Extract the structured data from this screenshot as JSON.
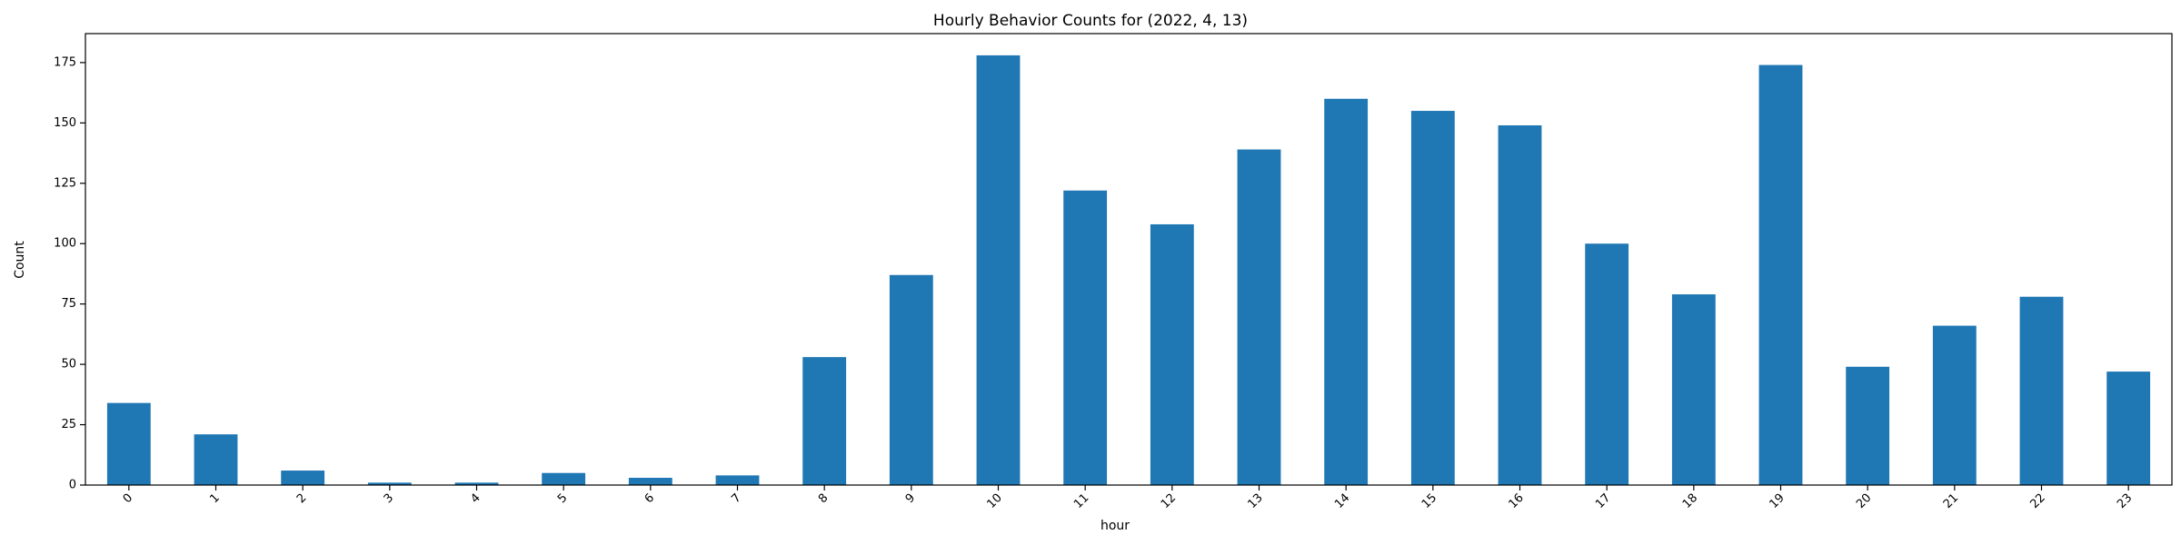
{
  "chart_data": {
    "type": "bar",
    "title": "Hourly Behavior Counts for (2022, 4, 13)",
    "xlabel": "hour",
    "ylabel": "Count",
    "categories": [
      "0",
      "1",
      "2",
      "3",
      "4",
      "5",
      "6",
      "7",
      "8",
      "9",
      "10",
      "11",
      "12",
      "13",
      "14",
      "15",
      "16",
      "17",
      "18",
      "19",
      "20",
      "21",
      "22",
      "23"
    ],
    "values": [
      34,
      21,
      6,
      1,
      1,
      5,
      3,
      4,
      53,
      87,
      178,
      122,
      108,
      139,
      160,
      155,
      149,
      100,
      79,
      174,
      49,
      66,
      78,
      47
    ],
    "yticks": [
      "0",
      "25",
      "50",
      "75",
      "100",
      "125",
      "150",
      "175"
    ],
    "ylim": [
      0,
      187
    ],
    "bar_color": "#1f77b4",
    "grid": false,
    "legend": "none",
    "xtick_rotation": "45"
  }
}
